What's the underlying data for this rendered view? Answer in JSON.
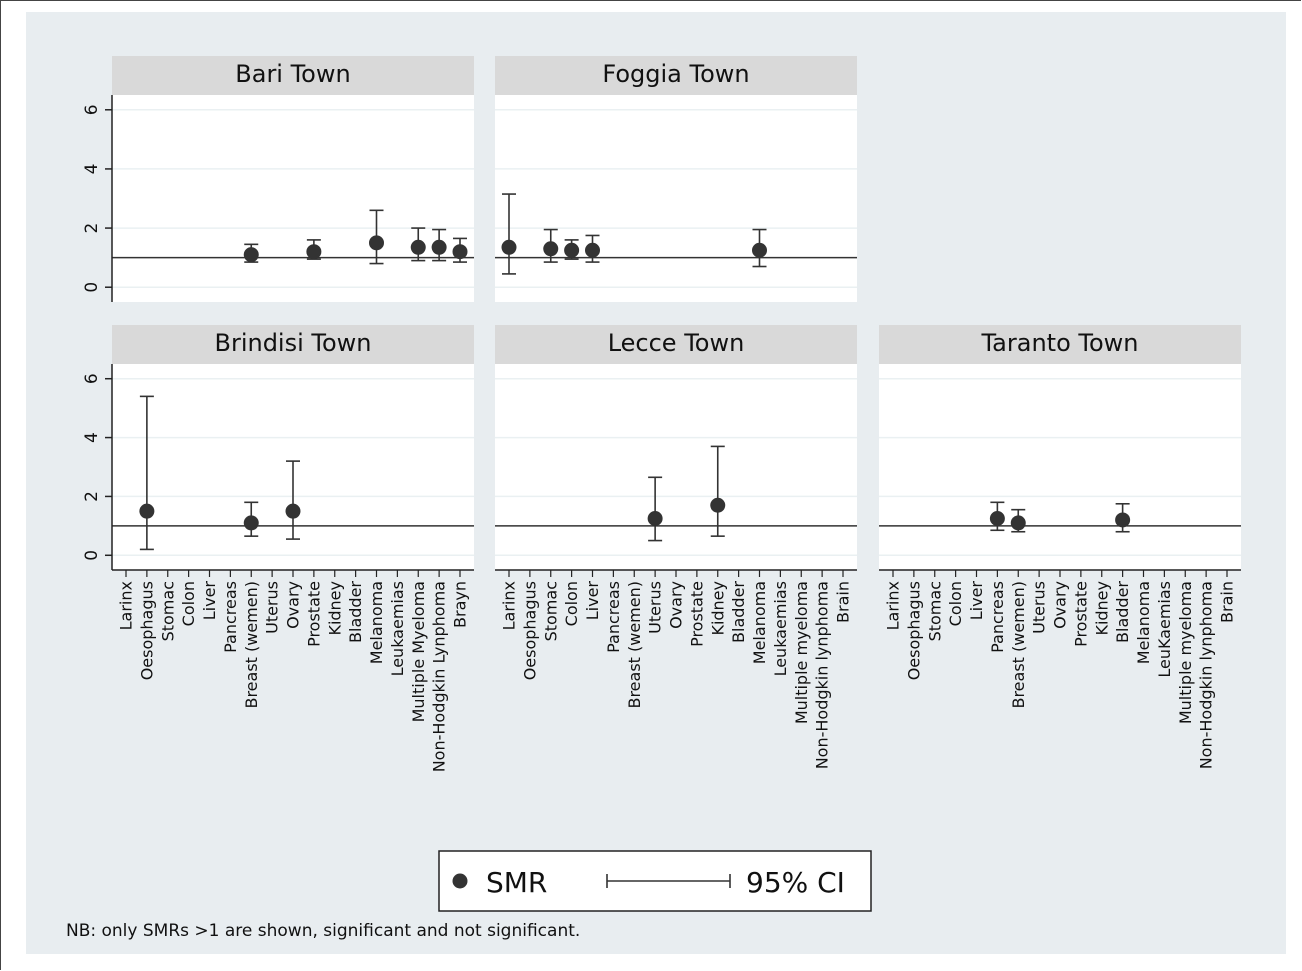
{
  "chart_data": {
    "type": "scatter",
    "ylim": [
      -0.5,
      6.5
    ],
    "yticks": [
      0,
      2,
      4,
      6
    ],
    "reference_line": 1,
    "legend": {
      "point_label": "SMR",
      "ci_label": "95% CI"
    },
    "note": "NB: only SMRs >1 are shown, significant and not significant.",
    "panels": [
      {
        "title": "Bari Town",
        "categories": [
          "Larinx",
          "Oesophagus",
          "Stomac",
          "Colon",
          "Liver",
          "Pancreas",
          "Breast (wemen)",
          "Uterus",
          "Ovary",
          "Prostate",
          "Kidney",
          "Bladder",
          "Melanoma",
          "Leukaemias",
          "Multiple Myeloma",
          "Non-Hodgkin Lynphoma",
          "Brayn"
        ],
        "points": [
          {
            "category": "Breast (wemen)",
            "smr": 1.1,
            "ci": [
              0.85,
              1.45
            ]
          },
          {
            "category": "Prostate",
            "smr": 1.2,
            "ci": [
              0.95,
              1.6
            ]
          },
          {
            "category": "Melanoma",
            "smr": 1.5,
            "ci": [
              0.8,
              2.6
            ]
          },
          {
            "category": "Multiple Myeloma",
            "smr": 1.35,
            "ci": [
              0.9,
              2.0
            ]
          },
          {
            "category": "Non-Hodgkin Lynphoma",
            "smr": 1.35,
            "ci": [
              0.9,
              1.95
            ]
          },
          {
            "category": "Brayn",
            "smr": 1.2,
            "ci": [
              0.85,
              1.65
            ]
          }
        ]
      },
      {
        "title": "Foggia Town",
        "categories": [
          "Larinx",
          "Oesophagus",
          "Stomac",
          "Colon",
          "Liver",
          "Pancreas",
          "Breast (wemen)",
          "Uterus",
          "Ovary",
          "Prostate",
          "Kidney",
          "Bladder",
          "Melanoma",
          "Leukaemias",
          "Multiple myeloma",
          "Non-Hodgkin lynphoma",
          "Brain"
        ],
        "points": [
          {
            "category": "Larinx",
            "smr": 1.35,
            "ci": [
              0.45,
              3.15
            ]
          },
          {
            "category": "Stomac",
            "smr": 1.3,
            "ci": [
              0.85,
              1.95
            ]
          },
          {
            "category": "Colon",
            "smr": 1.25,
            "ci": [
              0.95,
              1.6
            ]
          },
          {
            "category": "Liver",
            "smr": 1.25,
            "ci": [
              0.85,
              1.75
            ]
          },
          {
            "category": "Melanoma",
            "smr": 1.25,
            "ci": [
              0.7,
              1.95
            ]
          }
        ]
      },
      {
        "title": "Brindisi Town",
        "categories": [
          "Larinx",
          "Oesophagus",
          "Stomac",
          "Colon",
          "Liver",
          "Pancreas",
          "Breast (wemen)",
          "Uterus",
          "Ovary",
          "Prostate",
          "Kidney",
          "Bladder",
          "Melanoma",
          "Leukaemias",
          "Multiple Myeloma",
          "Non-Hodgkin Lynphoma",
          "Brayn"
        ],
        "points": [
          {
            "category": "Oesophagus",
            "smr": 1.5,
            "ci": [
              0.2,
              5.4
            ]
          },
          {
            "category": "Breast (wemen)",
            "smr": 1.1,
            "ci": [
              0.65,
              1.8
            ]
          },
          {
            "category": "Ovary",
            "smr": 1.5,
            "ci": [
              0.55,
              3.2
            ]
          }
        ]
      },
      {
        "title": "Lecce Town",
        "categories": [
          "Larinx",
          "Oesophagus",
          "Stomac",
          "Colon",
          "Liver",
          "Pancreas",
          "Breast (wemen)",
          "Uterus",
          "Ovary",
          "Prostate",
          "Kidney",
          "Bladder",
          "Melanoma",
          "Leukaemias",
          "Multiple myeloma",
          "Non-Hodgkin lynphoma",
          "Brain"
        ],
        "points": [
          {
            "category": "Uterus",
            "smr": 1.25,
            "ci": [
              0.5,
              2.65
            ]
          },
          {
            "category": "Kidney",
            "smr": 1.7,
            "ci": [
              0.65,
              3.7
            ]
          }
        ]
      },
      {
        "title": "Taranto Town",
        "categories": [
          "Larinx",
          "Oesophagus",
          "Stomac",
          "Colon",
          "Liver",
          "Pancreas",
          "Breast (wemen)",
          "Uterus",
          "Ovary",
          "Prostate",
          "Kidney",
          "Bladder",
          "Melanoma",
          "LeuKaemias",
          "Multiple myeloma",
          "Non-Hodgkin lynphoma",
          "Brain"
        ],
        "points": [
          {
            "category": "Pancreas",
            "smr": 1.25,
            "ci": [
              0.85,
              1.8
            ]
          },
          {
            "category": "Breast (wemen)",
            "smr": 1.1,
            "ci": [
              0.8,
              1.55
            ]
          },
          {
            "category": "Bladder",
            "smr": 1.2,
            "ci": [
              0.8,
              1.75
            ]
          }
        ]
      }
    ]
  }
}
